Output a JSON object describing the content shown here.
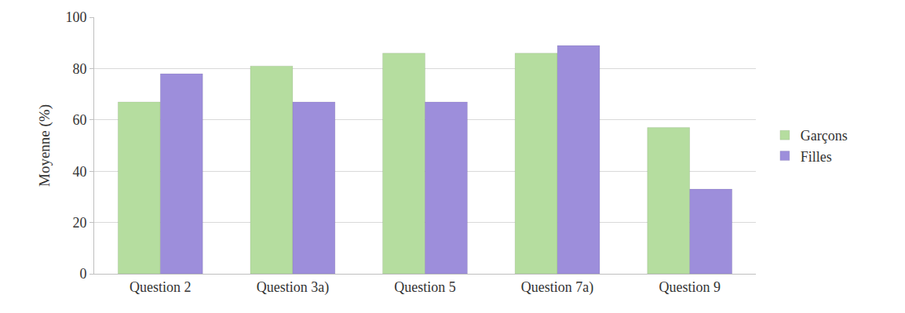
{
  "chart_data": {
    "type": "bar",
    "y_label": "Moyenne (%)",
    "categories": [
      "Question 2",
      "Question 3a)",
      "Question 5",
      "Question 7a)",
      "Question 9"
    ],
    "series": [
      {
        "name": "Garçons",
        "color": "#b5dd9f",
        "values": [
          67,
          81,
          86,
          86,
          57
        ]
      },
      {
        "name": "Filles",
        "color": "#9d8edb",
        "values": [
          78,
          67,
          67,
          89,
          33
        ]
      }
    ],
    "ylim": [
      0,
      100
    ],
    "yticks": [
      0,
      20,
      40,
      60,
      80,
      100
    ],
    "grid": true,
    "legend": "right"
  }
}
